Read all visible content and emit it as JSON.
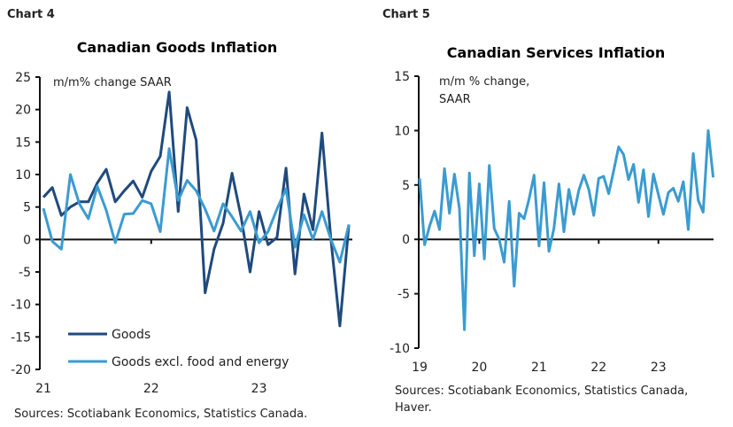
{
  "chart_data": [
    {
      "type": "line",
      "chart_label": "Chart 4",
      "title": "Canadian Goods Inflation",
      "unit_label": "m/m% change SAAR",
      "source": "Sources: Scotiabank Economics, Statistics Canada.",
      "x_start": "2021-01",
      "x_end": "2023-11",
      "frequency": "monthly",
      "x_tick_labels": [
        "21",
        "22",
        "23"
      ],
      "y_ticks": [
        25,
        20,
        15,
        10,
        5,
        0,
        -5,
        -10,
        -15,
        -20
      ],
      "ylim": [
        -20,
        25
      ],
      "grid": false,
      "legend_placement": "bottom-left",
      "series": [
        {
          "name": "Goods",
          "color": "#1f4a7d",
          "values": [
            6.5,
            8,
            3.7,
            5,
            5.8,
            5.8,
            8.7,
            10.8,
            5.8,
            7.5,
            9,
            6.5,
            10.5,
            12.8,
            22.7,
            4.3,
            20.3,
            15.3,
            -8.2,
            -1.5,
            2.5,
            10.2,
            3.5,
            -5,
            4.3,
            -0.8,
            0.3,
            11,
            -5.3,
            7,
            1.5,
            16.4,
            0,
            -13.3,
            2.3
          ]
        },
        {
          "name": "Goods excl. food and energy",
          "color": "#3b9bd1",
          "values": [
            4.8,
            -0.3,
            -1.5,
            10,
            5.5,
            3.2,
            8.2,
            4.5,
            -0.5,
            3.9,
            4,
            6,
            5.5,
            1.2,
            14,
            6,
            9.1,
            7.5,
            4.7,
            1.3,
            5.5,
            3.5,
            1.3,
            4.3,
            -0.5,
            1.2,
            4.7,
            7.8,
            -1.2,
            3.8,
            0,
            4.3,
            0,
            -3.5,
            2.3
          ]
        }
      ]
    },
    {
      "type": "line",
      "chart_label": "Chart 5",
      "title": "Canadian Services Inflation",
      "unit_label": [
        "m/m % change,",
        "SAAR"
      ],
      "source": [
        "Sources: Scotiabank Economics, Statistics Canada,",
        "Haver."
      ],
      "x_start": "2019-01",
      "x_end": "2023-12",
      "frequency": "monthly",
      "x_tick_labels": [
        "19",
        "20",
        "21",
        "22",
        "23"
      ],
      "y_ticks": [
        15,
        10,
        5,
        0,
        -5,
        -10
      ],
      "ylim": [
        -10,
        15
      ],
      "grid": false,
      "series": [
        {
          "color": "#3b9bd1",
          "values": [
            5.6,
            -0.5,
            1.2,
            2.6,
            0.9,
            6.5,
            2.4,
            6,
            2.8,
            -8.3,
            6.1,
            -1.5,
            5.1,
            -1.8,
            6.8,
            1,
            0,
            -2.1,
            3.5,
            -4.3,
            2.4,
            1.9,
            3.7,
            5.9,
            -0.6,
            5.2,
            -1.1,
            1,
            5.1,
            0.7,
            4.6,
            2.3,
            4.5,
            5.9,
            4.6,
            2.2,
            5.6,
            5.8,
            4.2,
            6.3,
            8.5,
            7.8,
            5.5,
            6.9,
            3.4,
            6.4,
            2.1,
            6,
            4.1,
            2.3,
            4.3,
            4.7,
            3.5,
            5.3,
            0.9,
            7.9,
            3.6,
            2.5,
            10,
            5.7
          ]
        }
      ]
    }
  ]
}
